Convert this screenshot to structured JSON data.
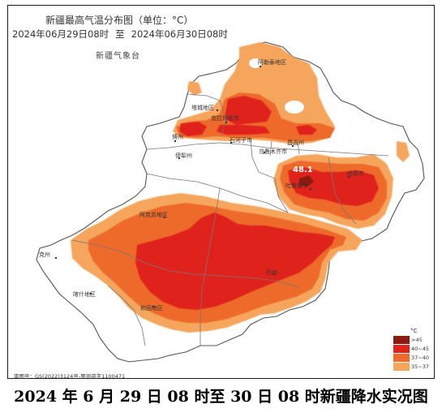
{
  "map": {
    "title": "新疆最高气温分布图（单位：°C）",
    "time_start": "2024年06月29日08时",
    "time_sep": "至",
    "time_end": "2024年06月30日08时",
    "agency": "新疆气象台",
    "approval": "审图号：GS(2022)3124号-甲测资字1100471"
  },
  "caption": "2024 年 6 月 29 日 08 时至 30 日 08 时新疆降水实况图",
  "legend": {
    "unit": "°C",
    "items": [
      {
        "label": ">45",
        "color": "#8b1a10"
      },
      {
        "label": "40~45",
        "color": "#e0231c"
      },
      {
        "label": "37~40",
        "color": "#ee6a2c"
      },
      {
        "label": "35~37",
        "color": "#f5a55c"
      }
    ]
  },
  "places": {
    "altay": "阿勒泰地区",
    "tacheng": "塔城地区",
    "karamay": "克拉玛依市",
    "bortala": "博州",
    "ili": "伊犁州",
    "shihezi": "石河子市",
    "urumqi": "乌鲁木齐市",
    "changji": "昌吉州",
    "turpan": "吐鲁番市",
    "hami": "哈密市",
    "aksu": "阿克苏地区",
    "kezhou": "克州",
    "kashgar": "喀什地区",
    "hotan": "和田地区",
    "bazhou": "巴州",
    "max_value": "48.1"
  },
  "colors": {
    "background": "#ffffff",
    "region_fill": "#ffffff",
    "border": "#888888"
  }
}
